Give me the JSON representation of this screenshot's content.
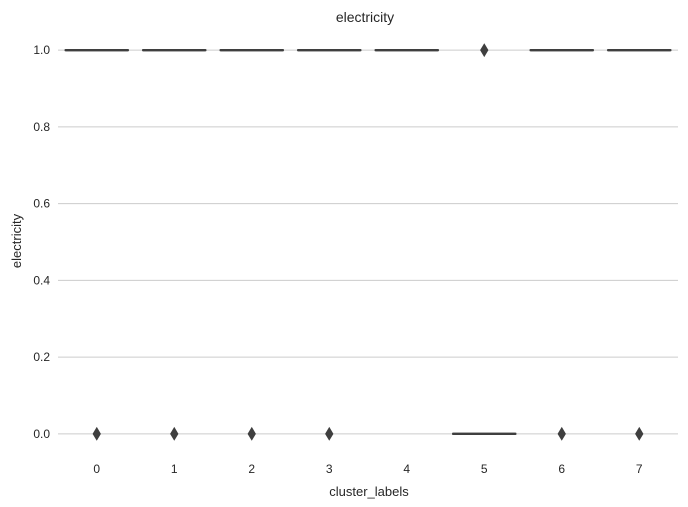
{
  "chart_data": {
    "type": "box",
    "title": "electricity",
    "xlabel": "cluster_labels",
    "ylabel": "electricity",
    "categories": [
      "0",
      "1",
      "2",
      "3",
      "4",
      "5",
      "6",
      "7"
    ],
    "ylim": [
      -0.05,
      1.05
    ],
    "yticks": [
      0.0,
      0.2,
      0.4,
      0.6,
      0.8,
      1.0
    ],
    "ytick_labels": [
      "0.0",
      "0.2",
      "0.4",
      "0.6",
      "0.8",
      "1.0"
    ],
    "grid": "horizontal",
    "boxes": [
      {
        "category": "0",
        "median": 1.0,
        "q1": 1.0,
        "q3": 1.0,
        "whisker_low": 1.0,
        "whisker_high": 1.0,
        "outliers": [
          0.0
        ]
      },
      {
        "category": "1",
        "median": 1.0,
        "q1": 1.0,
        "q3": 1.0,
        "whisker_low": 1.0,
        "whisker_high": 1.0,
        "outliers": [
          0.0
        ]
      },
      {
        "category": "2",
        "median": 1.0,
        "q1": 1.0,
        "q3": 1.0,
        "whisker_low": 1.0,
        "whisker_high": 1.0,
        "outliers": [
          0.0
        ]
      },
      {
        "category": "3",
        "median": 1.0,
        "q1": 1.0,
        "q3": 1.0,
        "whisker_low": 1.0,
        "whisker_high": 1.0,
        "outliers": [
          0.0
        ]
      },
      {
        "category": "4",
        "median": 1.0,
        "q1": 1.0,
        "q3": 1.0,
        "whisker_low": 1.0,
        "whisker_high": 1.0,
        "outliers": []
      },
      {
        "category": "5",
        "median": 0.0,
        "q1": 0.0,
        "q3": 0.0,
        "whisker_low": 0.0,
        "whisker_high": 0.0,
        "outliers": [
          1.0
        ]
      },
      {
        "category": "6",
        "median": 1.0,
        "q1": 1.0,
        "q3": 1.0,
        "whisker_low": 1.0,
        "whisker_high": 1.0,
        "outliers": [
          0.0
        ]
      },
      {
        "category": "7",
        "median": 1.0,
        "q1": 1.0,
        "q3": 1.0,
        "whisker_low": 1.0,
        "whisker_high": 1.0,
        "outliers": [
          0.0
        ]
      }
    ],
    "colors": {
      "background": "#ffffff",
      "grid": "#cccccc",
      "box_line": "#3f3f3f",
      "text": "#262626"
    }
  }
}
